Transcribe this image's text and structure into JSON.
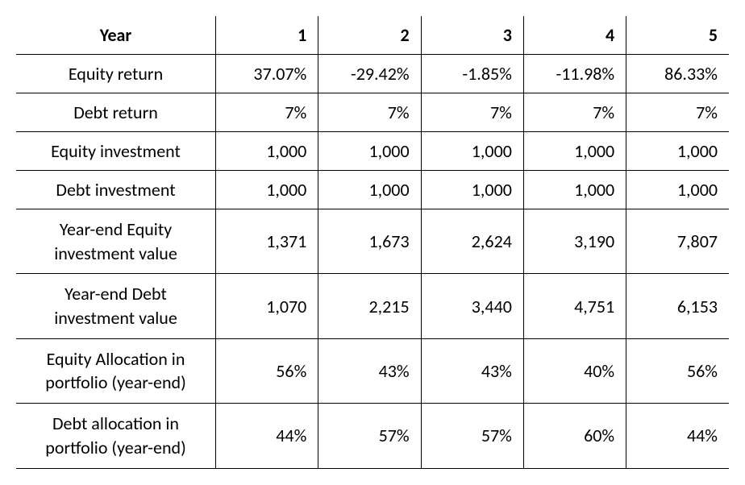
{
  "table": {
    "header_label": "Year",
    "years": [
      "1",
      "2",
      "3",
      "4",
      "5"
    ],
    "rows": [
      {
        "label": "Equity return",
        "values": [
          "37.07%",
          "-29.42%",
          "-1.85%",
          "-11.98%",
          "86.33%"
        ]
      },
      {
        "label": "Debt return",
        "values": [
          "7%",
          "7%",
          "7%",
          "7%",
          "7%"
        ]
      },
      {
        "label": "Equity investment",
        "values": [
          "1,000",
          "1,000",
          "1,000",
          "1,000",
          "1,000"
        ]
      },
      {
        "label": "Debt investment",
        "values": [
          "1,000",
          "1,000",
          "1,000",
          "1,000",
          "1,000"
        ]
      },
      {
        "label": "Year-end Equity investment value",
        "values": [
          "1,371",
          "1,673",
          "2,624",
          "3,190",
          "7,807"
        ]
      },
      {
        "label": "Year-end Debt investment value",
        "values": [
          "1,070",
          "2,215",
          "3,440",
          "4,751",
          "6,153"
        ]
      },
      {
        "label": "Equity Allocation in portfolio (year-end)",
        "values": [
          "56%",
          "43%",
          "43%",
          "40%",
          "56%"
        ]
      },
      {
        "label": "Debt allocation in portfolio (year-end)",
        "values": [
          "44%",
          "57%",
          "57%",
          "60%",
          "44%"
        ]
      }
    ],
    "style": {
      "font_family": "Calibri",
      "header_fontsize": 22,
      "cell_fontsize": 22,
      "header_fontweight": 700,
      "text_color": "#000000",
      "background_color": "#ffffff",
      "border_color": "#000000",
      "header_border_width": 1.5,
      "row_border_width": 1,
      "col_label_width_pct": 28,
      "col_year_width_pct": 14.4,
      "label_align": "center",
      "value_align": "right"
    }
  }
}
